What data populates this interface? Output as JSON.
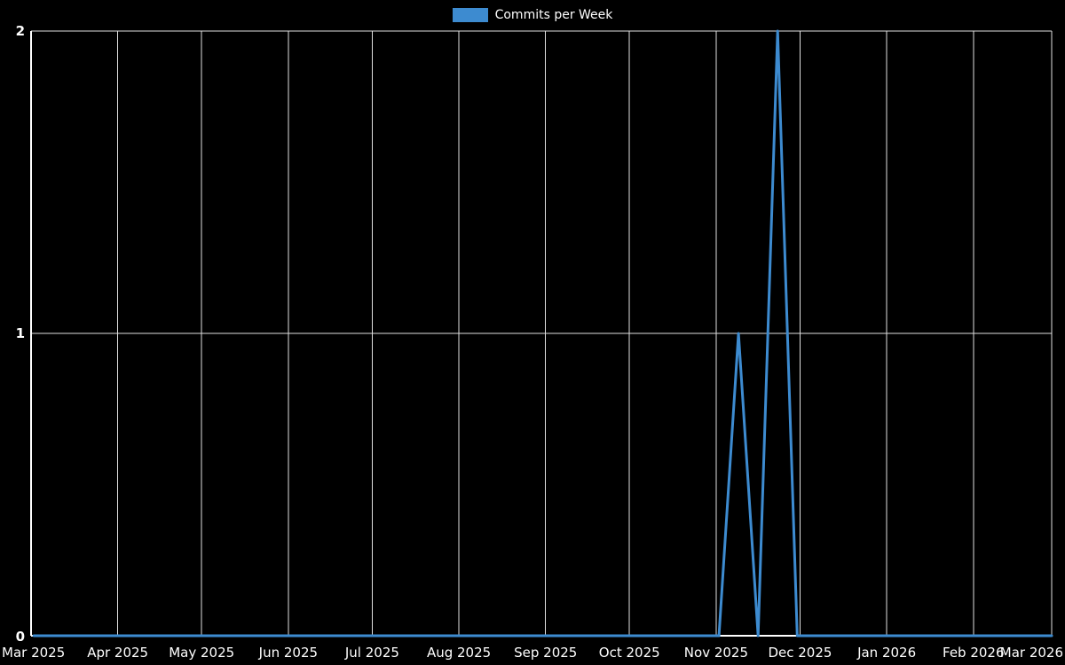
{
  "chart_data": {
    "type": "line",
    "legend": "Commits per Week",
    "line_color": "#3d8bd0",
    "background_color": "#000000",
    "grid_color": "#e0e0e0",
    "axis_color": "#ffffff",
    "text_color": "#ffffff",
    "ylim": [
      0,
      2
    ],
    "yticks": [
      0,
      1,
      2
    ],
    "x_domain": [
      "2025-03-01",
      "2026-03-01"
    ],
    "month_ticks": [
      {
        "date": "2025-03-01",
        "label": "Mar 2025"
      },
      {
        "date": "2025-04-01",
        "label": "Apr 2025"
      },
      {
        "date": "2025-05-01",
        "label": "May 2025"
      },
      {
        "date": "2025-06-01",
        "label": "Jun 2025"
      },
      {
        "date": "2025-07-01",
        "label": "Jul 2025"
      },
      {
        "date": "2025-08-01",
        "label": "Aug 2025"
      },
      {
        "date": "2025-09-01",
        "label": "Sep 2025"
      },
      {
        "date": "2025-10-01",
        "label": "Oct 2025"
      },
      {
        "date": "2025-11-01",
        "label": "Nov 2025"
      },
      {
        "date": "2025-12-01",
        "label": "Dec 2025"
      },
      {
        "date": "2026-01-01",
        "label": "Jan 2026"
      },
      {
        "date": "2026-02-01",
        "label": "Feb 2026"
      },
      {
        "date": "2026-03-01",
        "label": "Mar 2026"
      }
    ],
    "week_dates": [
      "2025-03-02",
      "2025-03-09",
      "2025-03-16",
      "2025-03-23",
      "2025-03-30",
      "2025-04-06",
      "2025-04-13",
      "2025-04-20",
      "2025-04-27",
      "2025-05-04",
      "2025-05-11",
      "2025-05-18",
      "2025-05-25",
      "2025-06-01",
      "2025-06-08",
      "2025-06-15",
      "2025-06-22",
      "2025-06-29",
      "2025-07-06",
      "2025-07-13",
      "2025-07-20",
      "2025-07-27",
      "2025-08-03",
      "2025-08-10",
      "2025-08-17",
      "2025-08-24",
      "2025-08-31",
      "2025-09-07",
      "2025-09-14",
      "2025-09-21",
      "2025-09-28",
      "2025-10-05",
      "2025-10-12",
      "2025-10-19",
      "2025-10-26",
      "2025-11-02",
      "2025-11-09",
      "2025-11-16",
      "2025-11-23",
      "2025-11-30",
      "2025-12-07",
      "2025-12-14",
      "2025-12-21",
      "2025-12-28",
      "2026-01-04",
      "2026-01-11",
      "2026-01-18",
      "2026-01-25",
      "2026-02-01",
      "2026-02-08",
      "2026-02-15",
      "2026-02-22",
      "2026-03-01"
    ],
    "values": [
      0,
      0,
      0,
      0,
      0,
      0,
      0,
      0,
      0,
      0,
      0,
      0,
      0,
      0,
      0,
      0,
      0,
      0,
      0,
      0,
      0,
      0,
      0,
      0,
      0,
      0,
      0,
      0,
      0,
      0,
      0,
      0,
      0,
      0,
      0,
      0,
      1,
      0,
      2,
      0,
      0,
      0,
      0,
      0,
      0,
      0,
      0,
      0,
      0,
      0,
      0,
      0,
      0
    ]
  }
}
